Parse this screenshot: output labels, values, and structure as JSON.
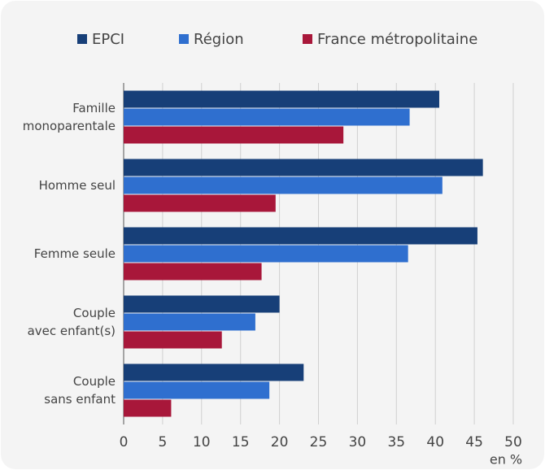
{
  "chart_data": {
    "type": "barh",
    "categories": [
      [
        "Famille",
        "monoparentale"
      ],
      [
        "Homme seul"
      ],
      [
        "Femme seule"
      ],
      [
        "Couple",
        "avec enfant(s)"
      ],
      [
        "Couple",
        "sans enfant"
      ]
    ],
    "series": [
      {
        "name": "EPCI",
        "color": "#173f78",
        "values": [
          40.5,
          46.1,
          45.4,
          20.0,
          23.1
        ]
      },
      {
        "name": "Région",
        "color": "#2f6fcf",
        "values": [
          36.7,
          40.9,
          36.5,
          16.9,
          18.7
        ]
      },
      {
        "name": "France métropolitaine",
        "color": "#a8173a",
        "values": [
          28.2,
          19.5,
          17.7,
          12.6,
          6.1
        ]
      }
    ],
    "xlim": [
      0,
      50
    ],
    "xticks": [
      0,
      5,
      10,
      15,
      20,
      25,
      30,
      35,
      40,
      45,
      50
    ],
    "xlabel": "en %",
    "grid": true,
    "legend": "top"
  }
}
